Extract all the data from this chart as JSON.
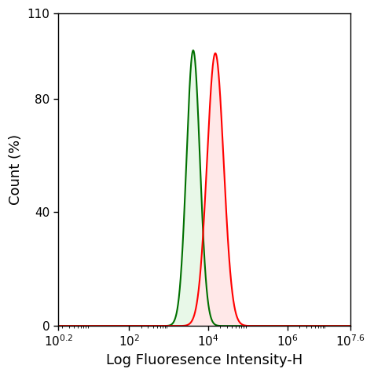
{
  "title": "",
  "xlabel": "Log Fluoresence Intensity-H",
  "ylabel": "Count (%)",
  "xlim_log": [
    0.2,
    7.6
  ],
  "ylim": [
    0,
    110
  ],
  "yticks": [
    0,
    40,
    80,
    110
  ],
  "xtick_positions": [
    0.2,
    2,
    4,
    6,
    7.6
  ],
  "xtick_labels": [
    "10$^{0.2}$",
    "10$^{2}$",
    "10$^{4}$",
    "10$^{6}$",
    "10$^{7.6}$"
  ],
  "green_peak_log": 3.62,
  "green_peak_height": 97,
  "green_sigma_log": 0.17,
  "red_peak_log": 4.18,
  "red_peak_height": 96,
  "red_sigma_log": 0.21,
  "green_line_color": "#007000",
  "green_fill_color": "#e8f8e8",
  "red_line_color": "#ff0000",
  "red_fill_color": "#ffe8e8",
  "background_color": "#ffffff",
  "xlabel_fontsize": 13,
  "ylabel_fontsize": 13,
  "tick_fontsize": 11,
  "linewidth": 1.5
}
